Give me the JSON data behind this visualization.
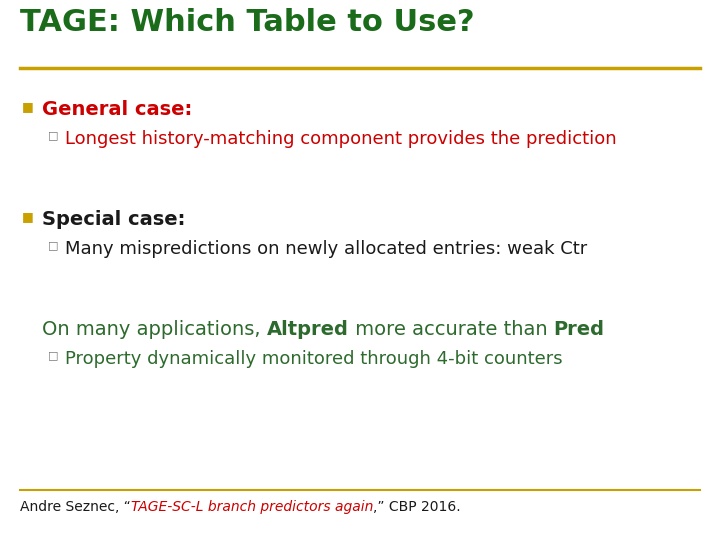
{
  "title": "TAGE: Which Table to Use?",
  "title_color": "#1a6b1a",
  "title_fontsize": 22,
  "bg_color": "#ffffff",
  "separator_color": "#c8a000",
  "bullet1_text": "General case:",
  "bullet1_color": "#cc0000",
  "sub1_text": "Longest history-matching component provides the prediction",
  "sub1_color": "#cc0000",
  "bullet2_text": "Special case:",
  "bullet2_color": "#1a1a1a",
  "sub2_text": "Many mispredictions on newly allocated entries: weak Ctr",
  "sub2_color": "#1a1a1a",
  "line3_prefix": "On many applications, ",
  "line3_altpred": "Altpred",
  "line3_middle": " more accurate than ",
  "line3_pred": "Pred",
  "line3_color": "#2d6a2d",
  "sub3_text": "Property dynamically monitored through 4-bit counters",
  "sub3_color": "#2d6a2d",
  "footer_prefix": "Andre Seznec, “",
  "footer_link": "TAGE-SC-L branch predictors again",
  "footer_suffix": ",” CBP 2016.",
  "footer_color": "#1a1a1a",
  "footer_link_color": "#cc0000",
  "footer_fontsize": 10,
  "body_fontsize": 14,
  "sub_fontsize": 13,
  "bullet_square_color": "#c8a000",
  "subbullet_color": "#777777"
}
